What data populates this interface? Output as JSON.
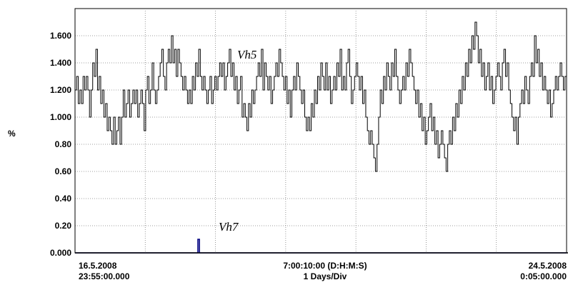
{
  "chart_data": {
    "type": "line",
    "ylabel": "%",
    "ylim": [
      0,
      1.8
    ],
    "y_ticks": [
      "0.000",
      "0.20",
      "0.40",
      "0.60",
      "0.80",
      "1.000",
      "1.200",
      "1.400",
      "1.600"
    ],
    "y_tick_values": [
      0,
      0.2,
      0.4,
      0.6,
      0.8,
      1.0,
      1.2,
      1.4,
      1.6
    ],
    "grid": true,
    "x_divisions": 7,
    "x_axis": {
      "start_date": "16.5.2008",
      "start_time": "23:55:00.000",
      "span": "7:00:10:00 (D:H:M:S)",
      "division": "1 Days/Div",
      "end_date": "24.5.2008",
      "end_time": "0:05:00.000"
    },
    "series": [
      {
        "name": "Vh5",
        "color": "#000000",
        "x_range_days": [
          0,
          7.007
        ],
        "values": [
          1.2,
          1.3,
          1.1,
          1.2,
          1.1,
          1.3,
          1.2,
          1.3,
          1.2,
          1.0,
          1.2,
          1.4,
          1.3,
          1.5,
          1.2,
          1.3,
          1.1,
          1.2,
          1.0,
          1.1,
          0.9,
          1.0,
          0.9,
          0.8,
          1.0,
          0.8,
          0.9,
          1.0,
          0.8,
          1.0,
          1.2,
          1.0,
          1.1,
          1.2,
          1.0,
          1.1,
          1.2,
          1.1,
          1.2,
          1.0,
          1.1,
          1.2,
          1.1,
          0.9,
          1.2,
          1.3,
          1.1,
          1.2,
          1.4,
          1.2,
          1.1,
          1.2,
          1.3,
          1.4,
          1.5,
          1.3,
          1.2,
          1.4,
          1.5,
          1.4,
          1.6,
          1.4,
          1.5,
          1.3,
          1.5,
          1.4,
          1.3,
          1.2,
          1.3,
          1.2,
          1.1,
          1.2,
          1.1,
          1.3,
          1.2,
          1.4,
          1.3,
          1.5,
          1.3,
          1.2,
          1.3,
          1.2,
          1.1,
          1.2,
          1.3,
          1.1,
          1.2,
          1.3,
          1.2,
          1.3,
          1.4,
          1.3,
          1.4,
          1.2,
          1.3,
          1.4,
          1.5,
          1.3,
          1.4,
          1.2,
          1.3,
          1.1,
          1.2,
          1.3,
          1.0,
          1.1,
          1.0,
          0.9,
          1.1,
          1.0,
          1.2,
          1.1,
          1.2,
          1.3,
          1.4,
          1.3,
          1.5,
          1.2,
          1.4,
          1.3,
          1.2,
          1.3,
          1.1,
          1.2,
          1.3,
          1.4,
          1.3,
          1.5,
          1.4,
          1.3,
          1.2,
          1.3,
          1.1,
          1.2,
          1.0,
          1.2,
          1.3,
          1.2,
          1.4,
          1.3,
          1.2,
          1.1,
          1.2,
          1.0,
          0.9,
          1.0,
          0.9,
          1.1,
          1.0,
          1.2,
          1.1,
          1.3,
          1.2,
          1.4,
          1.3,
          1.2,
          1.4,
          1.2,
          1.3,
          1.1,
          1.2,
          1.3,
          1.2,
          1.4,
          1.3,
          1.5,
          1.2,
          1.3,
          1.2,
          1.4,
          1.5,
          1.3,
          1.1,
          1.2,
          1.3,
          1.4,
          1.3,
          1.2,
          1.3,
          1.1,
          1.2,
          1.0,
          0.9,
          0.8,
          0.9,
          0.8,
          0.7,
          0.6,
          0.8,
          1.0,
          1.2,
          1.1,
          1.3,
          1.2,
          1.4,
          1.3,
          1.2,
          1.4,
          1.3,
          1.5,
          1.3,
          1.2,
          1.1,
          1.2,
          1.3,
          1.2,
          1.4,
          1.3,
          1.5,
          1.4,
          1.3,
          1.2,
          1.1,
          1.2,
          1.0,
          1.1,
          0.9,
          1.0,
          0.8,
          0.9,
          1.0,
          1.1,
          0.9,
          1.0,
          0.8,
          0.9,
          0.7,
          0.8,
          0.9,
          0.8,
          0.7,
          0.6,
          0.8,
          0.9,
          0.8,
          1.0,
          0.9,
          1.1,
          1.0,
          1.2,
          1.1,
          1.3,
          1.2,
          1.4,
          1.3,
          1.5,
          1.4,
          1.6,
          1.5,
          1.7,
          1.6,
          1.4,
          1.5,
          1.3,
          1.4,
          1.2,
          1.3,
          1.4,
          1.2,
          1.3,
          1.1,
          1.2,
          1.3,
          1.4,
          1.3,
          1.2,
          1.4,
          1.5,
          1.3,
          1.4,
          1.2,
          1.1,
          1.0,
          0.9,
          1.0,
          0.8,
          1.0,
          1.1,
          1.2,
          1.1,
          1.3,
          1.2,
          1.1,
          1.3,
          1.4,
          1.3,
          1.6,
          1.4,
          1.5,
          1.3,
          1.4,
          1.2,
          1.3,
          1.2,
          1.1,
          1.2,
          1.0,
          1.1,
          1.2,
          1.3,
          1.2,
          1.3,
          1.4,
          1.3,
          1.2,
          1.3
        ]
      },
      {
        "name": "Vh7",
        "color": "#000080",
        "x_range_days": [
          0,
          7.007
        ],
        "values": [
          0,
          0,
          0,
          0,
          0,
          0,
          0,
          0,
          0,
          0,
          0,
          0,
          0,
          0,
          0,
          0,
          0,
          0,
          0,
          0,
          0,
          0,
          0,
          0,
          0,
          0,
          0,
          0,
          0,
          0,
          0,
          0,
          0,
          0,
          0,
          0,
          0,
          0,
          0,
          0,
          0,
          0,
          0,
          0,
          0,
          0,
          0,
          0,
          0,
          0,
          0,
          0,
          0,
          0,
          0,
          0,
          0,
          0,
          0,
          0,
          0,
          0,
          0,
          0,
          0,
          0,
          0,
          0,
          0,
          0,
          0,
          0,
          0,
          0,
          0,
          0,
          0,
          0,
          0,
          0,
          0,
          0.1,
          0,
          0,
          0,
          0,
          0,
          0,
          0,
          0,
          0,
          0,
          0,
          0,
          0,
          0,
          0,
          0,
          0,
          0,
          0,
          0,
          0,
          0,
          0,
          0,
          0,
          0,
          0,
          0,
          0,
          0,
          0,
          0,
          0,
          0,
          0,
          0,
          0,
          0,
          0,
          0,
          0,
          0,
          0,
          0,
          0,
          0,
          0,
          0,
          0,
          0,
          0,
          0,
          0,
          0,
          0,
          0,
          0,
          0,
          0,
          0,
          0,
          0,
          0,
          0,
          0,
          0,
          0,
          0,
          0,
          0,
          0,
          0,
          0,
          0,
          0,
          0,
          0,
          0,
          0,
          0,
          0,
          0,
          0,
          0,
          0,
          0,
          0,
          0,
          0,
          0,
          0,
          0,
          0,
          0,
          0,
          0,
          0,
          0,
          0,
          0,
          0,
          0,
          0,
          0,
          0,
          0,
          0,
          0,
          0,
          0,
          0,
          0,
          0,
          0,
          0,
          0,
          0,
          0,
          0,
          0,
          0,
          0,
          0,
          0,
          0,
          0,
          0,
          0,
          0,
          0,
          0,
          0,
          0,
          0,
          0,
          0,
          0,
          0,
          0,
          0,
          0,
          0,
          0,
          0,
          0,
          0,
          0,
          0,
          0,
          0,
          0,
          0,
          0,
          0,
          0,
          0,
          0,
          0,
          0,
          0,
          0,
          0,
          0,
          0,
          0,
          0,
          0,
          0,
          0,
          0,
          0,
          0,
          0,
          0,
          0,
          0,
          0,
          0,
          0,
          0,
          0,
          0,
          0,
          0,
          0,
          0,
          0,
          0,
          0,
          0,
          0,
          0,
          0,
          0,
          0,
          0,
          0,
          0,
          0,
          0,
          0,
          0,
          0,
          0,
          0,
          0,
          0,
          0,
          0,
          0,
          0,
          0,
          0,
          0,
          0,
          0,
          0,
          0,
          0,
          0,
          0,
          0,
          0,
          0,
          0,
          0,
          0,
          0,
          0,
          0,
          0,
          0,
          0,
          0,
          0,
          0,
          0,
          0,
          0,
          0,
          0,
          0
        ]
      }
    ]
  }
}
